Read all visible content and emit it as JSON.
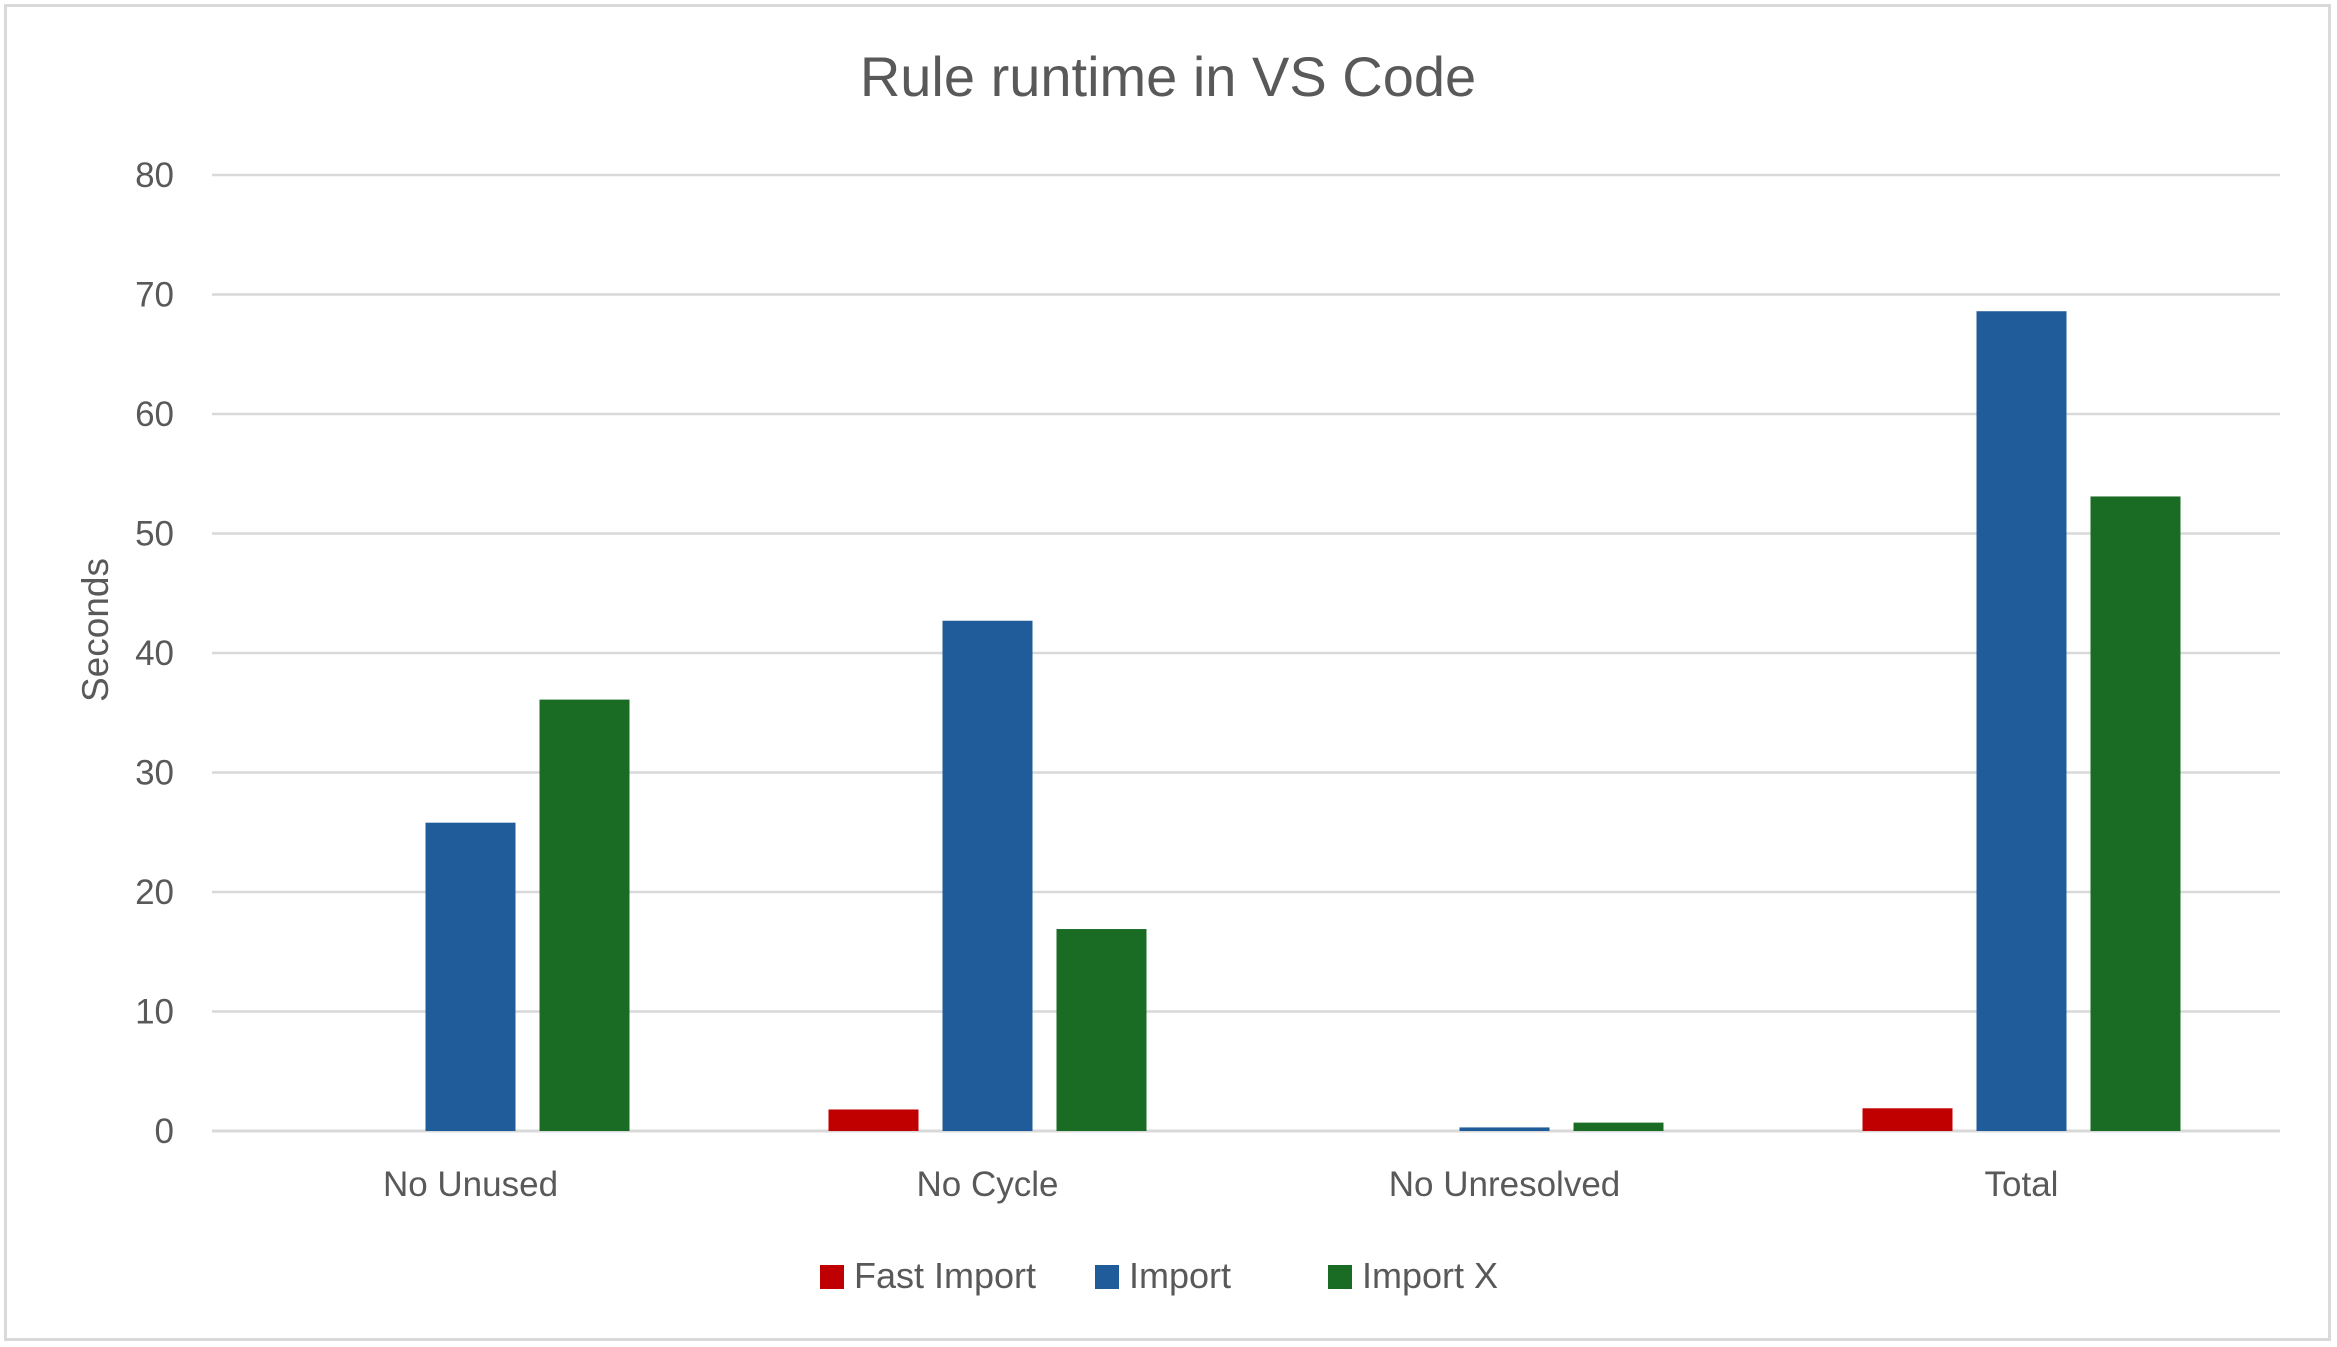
{
  "chart_data": {
    "type": "bar",
    "title": "Rule runtime in VS Code",
    "xlabel": "",
    "ylabel": "Seconds",
    "ylim": [
      0,
      80
    ],
    "yticks": [
      0,
      10,
      20,
      30,
      40,
      50,
      60,
      70,
      80
    ],
    "grid": true,
    "legend_position": "bottom",
    "categories": [
      "No Unused",
      "No Cycle",
      "No Unresolved",
      "Total"
    ],
    "series": [
      {
        "name": "Fast Import",
        "color": "#c00000",
        "values": [
          0,
          1.8,
          0,
          1.9
        ]
      },
      {
        "name": "Import",
        "color": "#1f5c99",
        "values": [
          25.8,
          42.7,
          0.3,
          68.6
        ]
      },
      {
        "name": "Import X",
        "color": "#1a6b24",
        "values": [
          36.1,
          16.9,
          0.7,
          53.1
        ]
      }
    ]
  }
}
